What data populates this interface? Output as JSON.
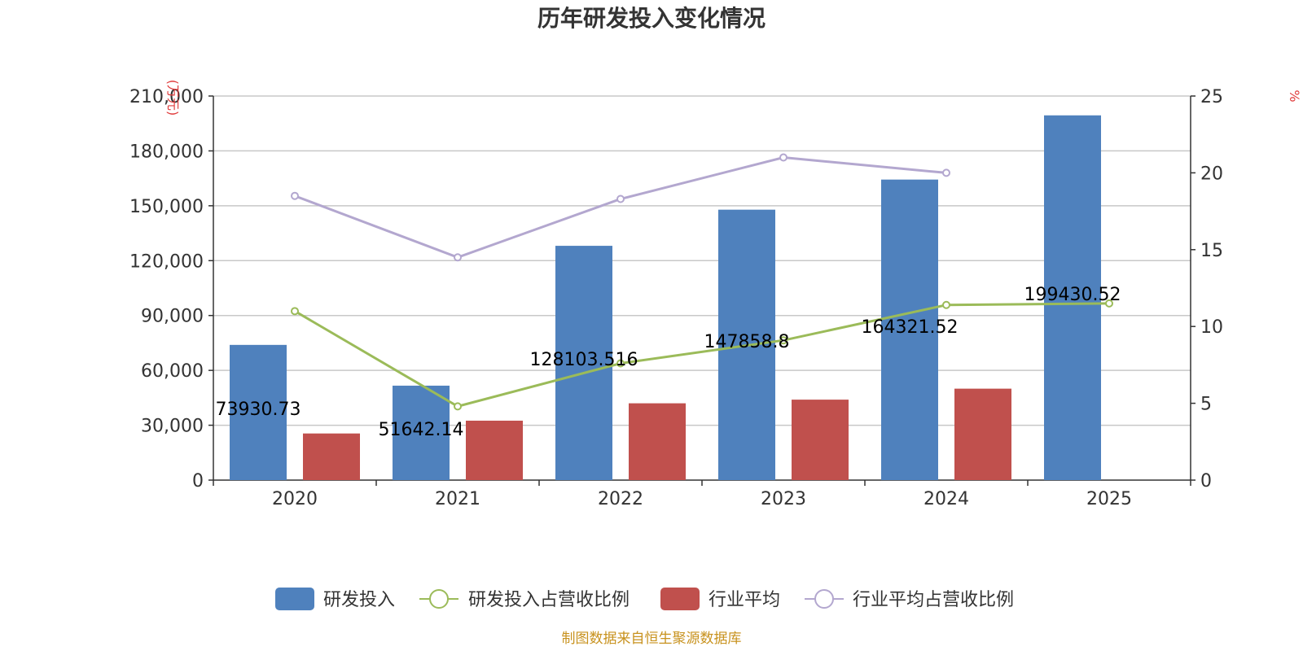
{
  "chart_data": {
    "type": "bar",
    "title": "历年研发投入变化情况",
    "categories": [
      "2020",
      "2021",
      "2022",
      "2023",
      "2024",
      "2025"
    ],
    "left_axis": {
      "unit": "(万元)",
      "ylim": [
        0,
        210000
      ],
      "ticks": [
        0,
        30000,
        60000,
        90000,
        120000,
        150000,
        180000,
        210000
      ],
      "tick_labels": [
        "0",
        "30,000",
        "60,000",
        "90,000",
        "120,000",
        "150,000",
        "180,000",
        "210,000"
      ]
    },
    "right_axis": {
      "unit": "%",
      "ylim": [
        0,
        25
      ],
      "ticks": [
        0,
        5,
        10,
        15,
        20,
        25
      ],
      "tick_labels": [
        "0",
        "5",
        "10",
        "15",
        "20",
        "25"
      ]
    },
    "series": [
      {
        "name": "研发投入",
        "type": "bar",
        "axis": "left",
        "color": "#4f81bd",
        "values": [
          73930.73,
          51642.14,
          128103.516,
          147858.8,
          164321.52,
          199430.52
        ],
        "labels": [
          "73930.73",
          "51642.14",
          "128103.516",
          "147858.8",
          "164321.52",
          "199430.52"
        ]
      },
      {
        "name": "研发投入占营收比例",
        "type": "line",
        "axis": "right",
        "color": "#9bbb59",
        "values": [
          11.0,
          4.8,
          7.6,
          9.1,
          11.4,
          11.5
        ]
      },
      {
        "name": "行业平均",
        "type": "bar",
        "axis": "left",
        "color": "#c0504d",
        "values": [
          25500,
          32500,
          42000,
          44000,
          50000,
          null
        ]
      },
      {
        "name": "行业平均占营收比例",
        "type": "line",
        "axis": "right",
        "color": "#b3a7cf",
        "values": [
          18.5,
          14.5,
          18.3,
          21.0,
          20.0,
          null
        ]
      }
    ]
  },
  "footer": {
    "source": "制图数据来自恒生聚源数据库"
  }
}
